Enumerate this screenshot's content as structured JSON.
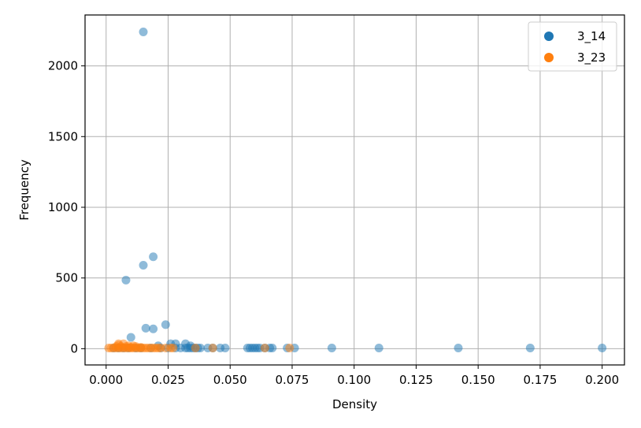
{
  "chart_data": {
    "type": "scatter",
    "xlabel": "Density",
    "ylabel": "Frequency",
    "xlim": [
      -0.0085,
      0.209
    ],
    "ylim": [
      -115,
      2360
    ],
    "xticks": [
      0.0,
      0.025,
      0.05,
      0.075,
      0.1,
      0.125,
      0.15,
      0.175,
      0.2
    ],
    "xtick_labels": [
      "0.000",
      "0.025",
      "0.050",
      "0.075",
      "0.100",
      "0.125",
      "0.150",
      "0.175",
      "0.200"
    ],
    "yticks": [
      0,
      500,
      1000,
      1500,
      2000
    ],
    "ytick_labels": [
      "0",
      "500",
      "1000",
      "1500",
      "2000"
    ],
    "grid": true,
    "legend_position": "top-right",
    "series": [
      {
        "name": "3_14",
        "color": "#1f77b4",
        "points": [
          [
            0.015,
            2240
          ],
          [
            0.019,
            650
          ],
          [
            0.015,
            590
          ],
          [
            0.008,
            485
          ],
          [
            0.024,
            170
          ],
          [
            0.016,
            145
          ],
          [
            0.019,
            140
          ],
          [
            0.01,
            80
          ],
          [
            0.026,
            35
          ],
          [
            0.028,
            35
          ],
          [
            0.021,
            20
          ],
          [
            0.032,
            35
          ],
          [
            0.034,
            20
          ],
          [
            0.003,
            5
          ],
          [
            0.005,
            5
          ],
          [
            0.007,
            5
          ],
          [
            0.009,
            5
          ],
          [
            0.012,
            5
          ],
          [
            0.014,
            5
          ],
          [
            0.018,
            5
          ],
          [
            0.022,
            5
          ],
          [
            0.025,
            5
          ],
          [
            0.028,
            5
          ],
          [
            0.03,
            5
          ],
          [
            0.032,
            5
          ],
          [
            0.033,
            5
          ],
          [
            0.034,
            5
          ],
          [
            0.035,
            5
          ],
          [
            0.036,
            5
          ],
          [
            0.037,
            5
          ],
          [
            0.038,
            5
          ],
          [
            0.041,
            5
          ],
          [
            0.043,
            5
          ],
          [
            0.046,
            5
          ],
          [
            0.048,
            5
          ],
          [
            0.057,
            5
          ],
          [
            0.058,
            5
          ],
          [
            0.059,
            5
          ],
          [
            0.06,
            5
          ],
          [
            0.061,
            5
          ],
          [
            0.062,
            5
          ],
          [
            0.064,
            5
          ],
          [
            0.066,
            5
          ],
          [
            0.067,
            5
          ],
          [
            0.073,
            5
          ],
          [
            0.076,
            5
          ],
          [
            0.091,
            5
          ],
          [
            0.11,
            5
          ],
          [
            0.142,
            5
          ],
          [
            0.171,
            5
          ],
          [
            0.2,
            5
          ]
        ]
      },
      {
        "name": "3_23",
        "color": "#ff7f0e",
        "points": [
          [
            0.001,
            5
          ],
          [
            0.002,
            5
          ],
          [
            0.003,
            5
          ],
          [
            0.004,
            5
          ],
          [
            0.004,
            15
          ],
          [
            0.005,
            5
          ],
          [
            0.005,
            25
          ],
          [
            0.005,
            35
          ],
          [
            0.006,
            5
          ],
          [
            0.006,
            15
          ],
          [
            0.007,
            5
          ],
          [
            0.007,
            35
          ],
          [
            0.008,
            5
          ],
          [
            0.008,
            15
          ],
          [
            0.009,
            5
          ],
          [
            0.009,
            20
          ],
          [
            0.01,
            5
          ],
          [
            0.01,
            10
          ],
          [
            0.011,
            5
          ],
          [
            0.011,
            20
          ],
          [
            0.012,
            5
          ],
          [
            0.012,
            15
          ],
          [
            0.013,
            5
          ],
          [
            0.014,
            5
          ],
          [
            0.014,
            10
          ],
          [
            0.015,
            5
          ],
          [
            0.016,
            5
          ],
          [
            0.017,
            5
          ],
          [
            0.018,
            5
          ],
          [
            0.019,
            5
          ],
          [
            0.02,
            5
          ],
          [
            0.021,
            5
          ],
          [
            0.022,
            5
          ],
          [
            0.024,
            5
          ],
          [
            0.026,
            5
          ],
          [
            0.027,
            5
          ],
          [
            0.036,
            5
          ],
          [
            0.043,
            5
          ],
          [
            0.064,
            5
          ],
          [
            0.074,
            5
          ]
        ]
      }
    ]
  }
}
